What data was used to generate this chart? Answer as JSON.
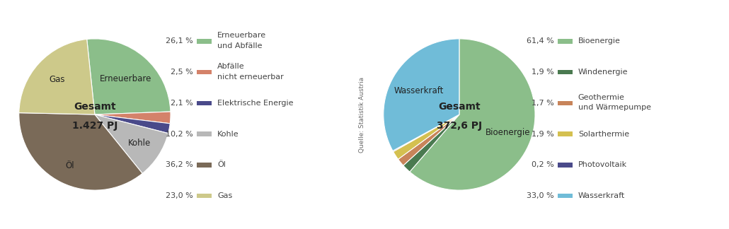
{
  "chart1": {
    "values": [
      26.1,
      2.5,
      2.1,
      10.2,
      36.2,
      23.0
    ],
    "colors": [
      "#8bbe8a",
      "#d4826a",
      "#4a4a8a",
      "#b8b8b8",
      "#7a6a58",
      "#cdc98a"
    ],
    "pie_labels": [
      "Erneuerbare",
      "",
      "",
      "Kohle",
      "Öl",
      "Gas"
    ],
    "pie_label_radii": [
      0.62,
      0,
      0,
      0.7,
      0.75,
      0.68
    ],
    "legend_pcts": [
      "26,1 %",
      "2,5 %",
      "2,1 %",
      "10,2 %",
      "36,2 %",
      "23,0 %"
    ],
    "legend_texts": [
      "Erneuerbare\nund Abfälle",
      "Abfälle\nnicht erneuerbar",
      "Elektrische Energie",
      "Kohle",
      "Öl",
      "Gas"
    ],
    "center_text_line1": "Gesamt",
    "center_text_line2": "1.427 PJ",
    "startangle": 96,
    "counterclock": false
  },
  "chart2": {
    "values": [
      61.4,
      1.9,
      1.7,
      1.9,
      0.2,
      33.0
    ],
    "colors": [
      "#8bbe8a",
      "#4a7a50",
      "#c8845a",
      "#d4c050",
      "#4a4a8a",
      "#70bcd8"
    ],
    "pie_labels": [
      "Bioenergie",
      "",
      "",
      "",
      "",
      "Wasserkraft"
    ],
    "pie_label_radii": [
      0.68,
      0,
      0,
      0,
      0,
      0.62
    ],
    "legend_pcts": [
      "61,4 %",
      "1,9 %",
      "1,7 %",
      "1,9 %",
      "0,2 %",
      "33,0 %"
    ],
    "legend_texts": [
      "Bioenergie",
      "Windenergie",
      "Geothermie\nund Wärmepumpe",
      "Solarthermie",
      "Photovoltaik",
      "Wasserkraft"
    ],
    "center_text_line1": "Gesamt",
    "center_text_line2": "372,6 PJ",
    "startangle": 90,
    "counterclock": false
  },
  "source_text": "Quelle: Statistik Austria",
  "bg_color": "#ffffff",
  "fig_width": 10.3,
  "fig_height": 3.24,
  "dpi": 100
}
